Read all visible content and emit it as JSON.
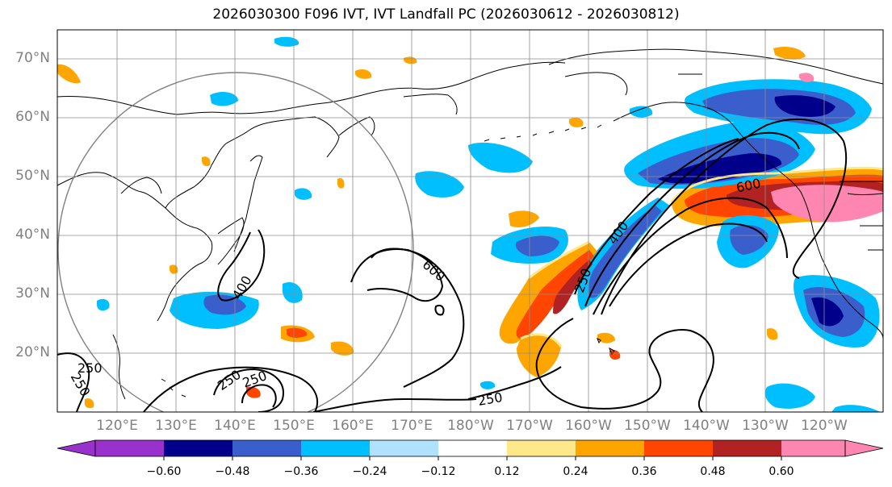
{
  "title": "2026030300 F096 IVT, IVT Landfall PC (2026030612 - 2026030812)",
  "map": {
    "projection": "Cylindrical (Pacific basin)",
    "lat_range": [
      10,
      75
    ],
    "lon_range_east": [
      110,
      250
    ],
    "lat_labels": [
      "70°N",
      "60°N",
      "50°N",
      "40°N",
      "30°N",
      "20°N"
    ],
    "lon_labels": [
      "120°E",
      "130°E",
      "140°E",
      "150°E",
      "160°E",
      "170°E",
      "180°W",
      "170°W",
      "160°W",
      "150°W",
      "140°W",
      "130°W",
      "120°W"
    ]
  },
  "contours": {
    "variable": "IVT",
    "levels": [
      250,
      400,
      600
    ],
    "labels_shown": [
      "250",
      "250",
      "250",
      "250",
      "250",
      "400",
      "600",
      "400",
      "250",
      "600"
    ]
  },
  "colorbar": {
    "tick_labels": [
      "−0.60",
      "−0.48",
      "−0.36",
      "−0.24",
      "−0.12",
      "0.12",
      "0.24",
      "0.36",
      "0.48",
      "0.60"
    ],
    "colors": [
      "#9932cc",
      "#00008b",
      "#3a5fcd",
      "#00bfff",
      "#b0e2ff",
      "#ffffff",
      "#ffe88a",
      "#ffa500",
      "#ff4500",
      "#b22222",
      "#ff86b0",
      "#ff86b0"
    ],
    "extend": "both"
  }
}
